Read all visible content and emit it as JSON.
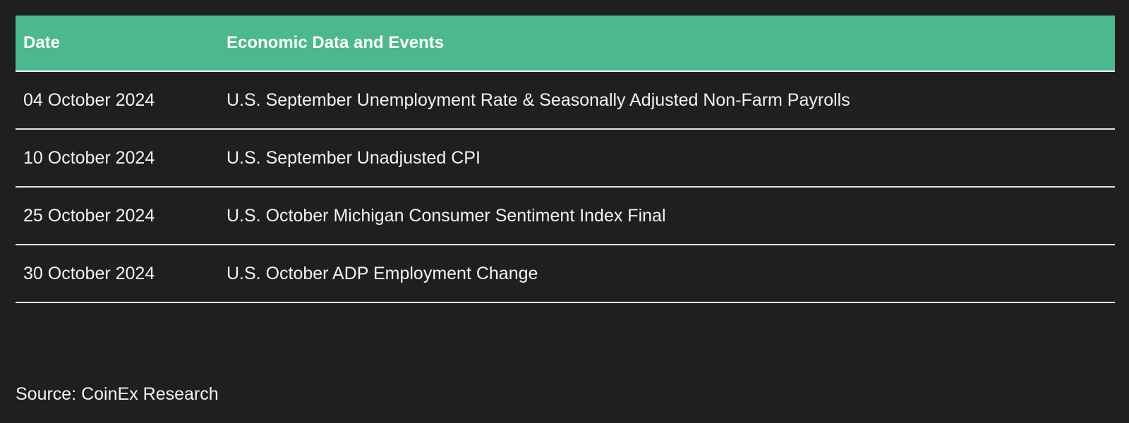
{
  "table": {
    "headers": [
      "Date",
      "Economic Data and Events"
    ],
    "rows": [
      [
        "04 October 2024",
        "U.S. September Unemployment Rate & Seasonally Adjusted Non-Farm Payrolls"
      ],
      [
        "10 October 2024",
        "U.S. September Unadjusted CPI"
      ],
      [
        "25 October 2024",
        "U.S. October Michigan Consumer Sentiment Index Final"
      ],
      [
        "30 October 2024",
        "U.S. October ADP Employment Change"
      ]
    ]
  },
  "source": "Source: CoinEx Research",
  "colors": {
    "background": "#1f1f1f",
    "header_background": "#4cb88e",
    "text": "#f2f2f2",
    "row_divider": "#e6e6e6"
  }
}
